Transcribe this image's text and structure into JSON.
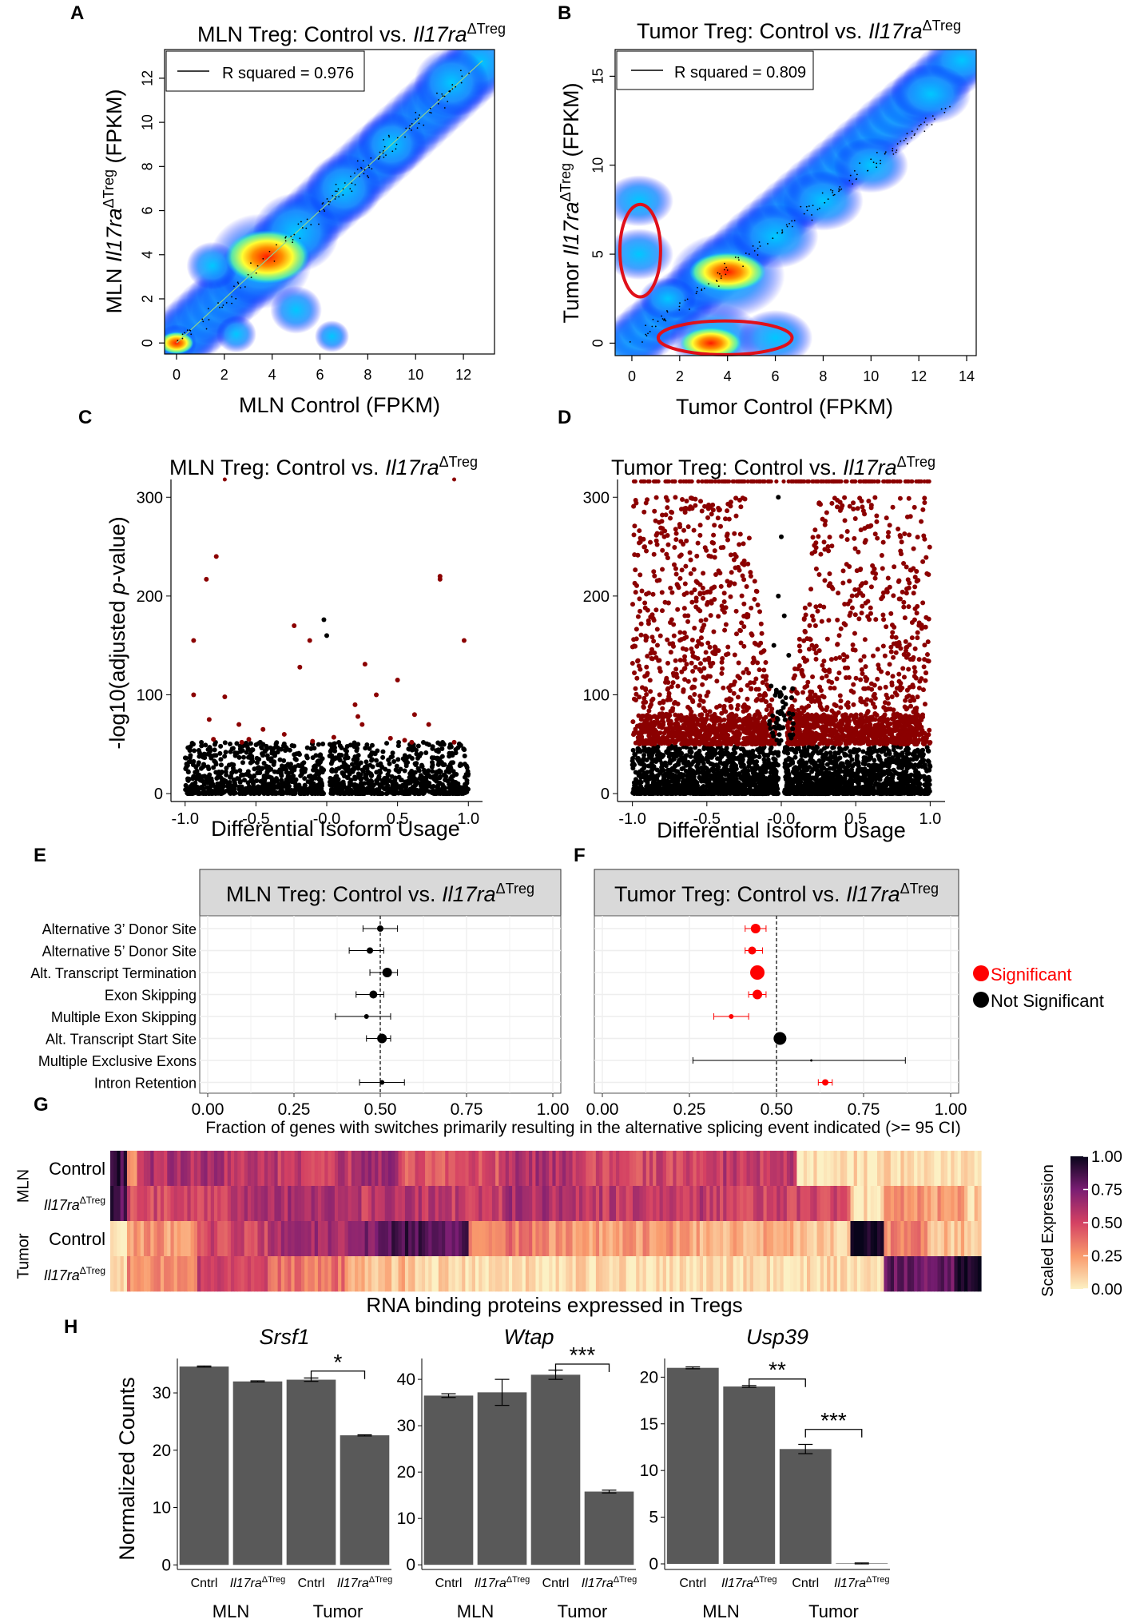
{
  "panel_letters": [
    "A",
    "B",
    "C",
    "D",
    "E",
    "F",
    "G",
    "H"
  ],
  "colors": {
    "dark_red": "#8b0000",
    "sig_red": "#ff0000",
    "bar_gray": "#595959",
    "facet_gray": "#d9d9d9"
  },
  "chart_data": [
    {
      "id": "A",
      "type": "scatter",
      "title_plain": "MLN Treg: Control vs. ",
      "title_gene": "Il17ra",
      "title_sup": "ΔTreg",
      "xlabel": "MLN Control (FPKM)",
      "ylabel_prefix": "MLN ",
      "ylabel_gene": "Il17ra",
      "ylabel_sup": "ΔTreg",
      "ylabel_suffix": " (FPKM)",
      "xlim": [
        -0.5,
        13.3
      ],
      "ylim": [
        -0.5,
        13.3
      ],
      "xticks": [
        0,
        2,
        4,
        6,
        8,
        10,
        12
      ],
      "yticks": [
        0,
        2,
        4,
        6,
        8,
        10,
        12
      ],
      "legend": "R squared = 0.976",
      "density": [
        [
          0,
          0,
          0.7
        ],
        [
          3.5,
          3.7,
          1.8
        ],
        [
          5,
          5,
          1.5
        ],
        [
          7,
          7,
          1.3
        ],
        [
          9,
          9,
          1.2
        ],
        [
          11.5,
          11.8,
          1.3
        ],
        [
          1.5,
          3.5,
          0.9
        ],
        [
          5,
          1.5,
          0.9
        ],
        [
          2.5,
          0.4,
          0.7
        ],
        [
          6.5,
          0.3,
          0.6
        ]
      ],
      "hotspots": [
        [
          0,
          0,
          0.45
        ],
        [
          3.8,
          3.9,
          1.1
        ]
      ]
    },
    {
      "id": "B",
      "type": "scatter",
      "title_plain": "Tumor Treg: Control vs. ",
      "title_gene": "Il17ra",
      "title_sup": "ΔTreg",
      "xlabel": "Tumor Control (FPKM)",
      "ylabel_prefix": "Tumor ",
      "ylabel_gene": "Il17ra",
      "ylabel_sup": "ΔTreg",
      "ylabel_suffix": " (FPKM)",
      "xlim": [
        -0.7,
        14.4
      ],
      "ylim": [
        -0.7,
        16.5
      ],
      "xticks": [
        0,
        2,
        4,
        6,
        8,
        10,
        12,
        14
      ],
      "yticks": [
        0,
        5,
        10,
        15
      ],
      "legend": "R squared = 0.809",
      "density": [
        [
          0.3,
          5,
          1.2
        ],
        [
          0.3,
          8,
          1.2
        ],
        [
          3.5,
          0.3,
          1.6
        ],
        [
          6,
          0.3,
          1.3
        ],
        [
          4,
          3.8,
          2.0
        ],
        [
          6,
          6,
          1.5
        ],
        [
          8,
          8,
          1.4
        ],
        [
          10,
          10,
          1.3
        ],
        [
          12.5,
          14,
          1.4
        ],
        [
          1.5,
          2.5,
          1.0
        ]
      ],
      "hotspots": [
        [
          3.3,
          0,
          0.8
        ],
        [
          4.0,
          4.0,
          1.0
        ]
      ],
      "ellipses": [
        {
          "cx": 0.35,
          "cy": 5.2,
          "rx": 0.85,
          "ry": 2.6
        },
        {
          "cx": 3.9,
          "cy": 0.3,
          "rx": 2.8,
          "ry": 0.95
        }
      ]
    },
    {
      "id": "C",
      "type": "scatter",
      "title_plain": "MLN Treg: Control vs. ",
      "title_gene": "Il17ra",
      "title_sup": "ΔTreg",
      "xlabel": "Differential Isoform Usage",
      "ylabel_prefix": "-log10(adjusted ",
      "ylabel_italic": "p",
      "ylabel_suffix": "-value)",
      "xlim": [
        -1.1,
        1.1
      ],
      "ylim": [
        -8,
        318
      ],
      "xticks": [
        -1.0,
        -0.5,
        0.0,
        0.5,
        1.0
      ],
      "xticklabels": [
        "-1.0",
        "-0.5",
        "-0.0",
        "0.5",
        "1.0"
      ],
      "yticks": [
        0,
        100,
        200,
        300
      ],
      "significant_points": [
        [
          -0.78,
          240
        ],
        [
          -0.85,
          217
        ],
        [
          -0.94,
          155
        ],
        [
          -0.94,
          100
        ],
        [
          -0.72,
          98
        ],
        [
          -0.83,
          75
        ],
        [
          -0.62,
          70
        ],
        [
          -0.45,
          65
        ],
        [
          -0.3,
          60
        ],
        [
          -0.23,
          170
        ],
        [
          -0.19,
          128
        ],
        [
          -0.12,
          155
        ],
        [
          0.2,
          90
        ],
        [
          0.22,
          78
        ],
        [
          0.25,
          70
        ],
        [
          0.27,
          131
        ],
        [
          0.35,
          100
        ],
        [
          0.5,
          115
        ],
        [
          0.62,
          80
        ],
        [
          0.72,
          70
        ],
        [
          0.8,
          220
        ],
        [
          0.8,
          217
        ],
        [
          0.97,
          155
        ],
        [
          -0.55,
          55
        ],
        [
          -0.6,
          52
        ],
        [
          0.55,
          54
        ],
        [
          0.6,
          52
        ],
        [
          0.9,
          52
        ],
        [
          -0.8,
          55
        ],
        [
          0.45,
          56
        ],
        [
          -0.1,
          53
        ],
        [
          0.05,
          57
        ]
      ],
      "top_points": [
        [
          -0.72,
          318
        ],
        [
          0.9,
          318
        ]
      ],
      "black_outliers": [
        [
          -0.02,
          176
        ],
        [
          0.0,
          160
        ]
      ]
    },
    {
      "id": "D",
      "type": "scatter",
      "title_plain": "Tumor Treg: Control vs. ",
      "title_gene": "Il17ra",
      "title_sup": "ΔTreg",
      "xlabel": "Differential Isoform Usage",
      "ylabel_prefix": "",
      "ylabel_italic": "",
      "ylabel_suffix": "",
      "xlim": [
        -1.1,
        1.1
      ],
      "ylim": [
        -8,
        318
      ],
      "xticks": [
        -1.0,
        -0.5,
        0.0,
        0.5,
        1.0
      ],
      "xticklabels": [
        "-1.0",
        "-0.5",
        "-0.0",
        "0.5",
        "1.0"
      ],
      "yticks": [
        0,
        100,
        200,
        300
      ],
      "black_outliers": [
        [
          -0.02,
          300
        ],
        [
          0.0,
          260
        ],
        [
          -0.02,
          200
        ],
        [
          0.02,
          180
        ],
        [
          -0.05,
          150
        ],
        [
          0.05,
          140
        ],
        [
          0.0,
          100
        ]
      ]
    },
    {
      "id": "E",
      "type": "scatter",
      "facet_plain": "MLN Treg: Control vs. ",
      "facet_gene": "Il17ra",
      "facet_sup": "ΔTreg",
      "categories": [
        "Alternative 3’ Donor Site",
        "Alternative 5’ Donor Site",
        "Alt. Transcript Termination",
        "Exon Skipping",
        "Multiple Exon Skipping",
        "Alt. Transcript Start Site",
        "Multiple Exclusive Exons",
        "Intron Retention"
      ],
      "estimates": [
        0.5,
        0.47,
        0.52,
        0.48,
        0.46,
        0.505,
        null,
        0.505
      ],
      "ci_low": [
        0.45,
        0.41,
        0.47,
        0.43,
        0.37,
        0.46,
        null,
        0.44
      ],
      "ci_high": [
        0.55,
        0.51,
        0.55,
        0.51,
        0.53,
        0.53,
        null,
        0.57
      ],
      "sizes": [
        4,
        4,
        6,
        5,
        3,
        6,
        0,
        3
      ],
      "significant": [
        false,
        false,
        false,
        false,
        false,
        false,
        false,
        false
      ],
      "xlim": [
        0,
        1
      ],
      "xticks": [
        "0.00",
        "0.25",
        "0.50",
        "0.75",
        "1.00"
      ],
      "vline": 0.5
    },
    {
      "id": "F",
      "type": "scatter",
      "facet_plain": "Tumor Treg: Control vs. ",
      "facet_gene": "Il17ra",
      "facet_sup": "ΔTreg",
      "estimates": [
        0.44,
        0.43,
        0.445,
        0.445,
        0.37,
        0.51,
        0.6,
        0.64
      ],
      "ci_low": [
        0.41,
        0.41,
        0.43,
        0.42,
        0.32,
        0.5,
        0.26,
        0.62
      ],
      "ci_high": [
        0.47,
        0.46,
        0.46,
        0.47,
        0.42,
        0.52,
        0.87,
        0.66
      ],
      "sizes": [
        6,
        5,
        9,
        6,
        3,
        8,
        1.5,
        4
      ],
      "significant": [
        true,
        true,
        true,
        true,
        true,
        false,
        false,
        true
      ],
      "xlim": [
        0,
        1
      ],
      "xticks": [
        "0.00",
        "0.25",
        "0.50",
        "0.75",
        "1.00"
      ],
      "vline": 0.5,
      "legend": [
        "Significant",
        "Not Significant"
      ]
    },
    {
      "id": "G",
      "type": "heatmap",
      "xlabel": "RNA binding proteins expressed in Tregs",
      "row_groups": [
        "MLN",
        "Tumor"
      ],
      "rows": [
        {
          "label": "Control",
          "gene": "",
          "sup": ""
        },
        {
          "label": "",
          "gene": "Il17ra",
          "sup": "ΔTreg"
        },
        {
          "label": "Control",
          "gene": "",
          "sup": ""
        },
        {
          "label": "",
          "gene": "Il17ra",
          "sup": "ΔTreg"
        }
      ],
      "segments": [
        [
          [
            0.02,
            0.88
          ],
          [
            0.03,
            0.2
          ],
          [
            0.14,
            0.6
          ],
          [
            0.28,
            0.55
          ],
          [
            0.33,
            0.65
          ],
          [
            0.45,
            0.45
          ],
          [
            0.53,
            0.6
          ],
          [
            0.7,
            0.5
          ],
          [
            0.79,
            0.55
          ],
          [
            0.85,
            0.05
          ],
          [
            1.0,
            0.05
          ]
        ],
        [
          [
            0.02,
            0.85
          ],
          [
            0.14,
            0.5
          ],
          [
            0.28,
            0.6
          ],
          [
            0.45,
            0.55
          ],
          [
            0.53,
            0.62
          ],
          [
            0.7,
            0.55
          ],
          [
            0.85,
            0.5
          ],
          [
            0.89,
            0.05
          ],
          [
            0.98,
            0.25
          ],
          [
            1.0,
            0.1
          ]
        ],
        [
          [
            0.02,
            0.05
          ],
          [
            0.1,
            0.25
          ],
          [
            0.18,
            0.5
          ],
          [
            0.28,
            0.65
          ],
          [
            0.32,
            0.75
          ],
          [
            0.41,
            0.85
          ],
          [
            0.5,
            0.35
          ],
          [
            0.65,
            0.25
          ],
          [
            0.78,
            0.2
          ],
          [
            0.81,
            0.15
          ],
          [
            0.85,
            0.1
          ],
          [
            0.89,
            0.97
          ],
          [
            0.94,
            0.3
          ],
          [
            1.0,
            0.15
          ]
        ],
        [
          [
            0.02,
            0.05
          ],
          [
            0.1,
            0.3
          ],
          [
            0.18,
            0.55
          ],
          [
            0.27,
            0.35
          ],
          [
            0.35,
            0.15
          ],
          [
            0.5,
            0.05
          ],
          [
            0.85,
            0.05
          ],
          [
            0.89,
            0.05
          ],
          [
            0.97,
            0.8
          ],
          [
            1.0,
            0.95
          ]
        ]
      ],
      "colorbar_title": "Scaled Expression",
      "colorbar_ticks": [
        "1.00",
        "0.75",
        "0.50",
        "0.25",
        "0.00"
      ]
    },
    {
      "id": "H",
      "type": "bar",
      "ylabel": "Normalized Counts",
      "subplots": [
        {
          "title": "Srsf1",
          "categories": [
            "Cntrl",
            "Il17ra",
            "Cntrl",
            "Il17ra"
          ],
          "sup": "ΔTreg",
          "values": [
            34.6,
            32,
            32.3,
            22.6
          ],
          "errors": [
            0.1,
            0.1,
            0.3,
            0.1
          ],
          "ylim": [
            -0.8,
            36
          ],
          "yticks": [
            0,
            10,
            20,
            30
          ],
          "groups": [
            "MLN",
            "Tumor"
          ],
          "sig": [
            {
              "from": 2,
              "to": 3,
              "label": "*",
              "y": 33.8
            }
          ]
        },
        {
          "title": "Wtap",
          "categories": [
            "Cntrl",
            "Il17ra",
            "Cntrl",
            "Il17ra"
          ],
          "sup": "ΔTreg",
          "values": [
            36.5,
            37.2,
            41,
            15.8
          ],
          "errors": [
            0.4,
            2.8,
            1,
            0.3
          ],
          "ylim": [
            -1,
            44.5
          ],
          "yticks": [
            0,
            10,
            20,
            30,
            40
          ],
          "groups": [
            "MLN",
            "Tumor"
          ],
          "sig": [
            {
              "from": 2,
              "to": 3,
              "label": "***",
              "y": 43.3
            }
          ]
        },
        {
          "title": "Usp39",
          "categories": [
            "Cntrl",
            "Il17ra",
            "Cntrl",
            "Il17ra"
          ],
          "sup": "ΔTreg",
          "values": [
            21,
            19,
            12.3,
            0.05
          ],
          "errors": [
            0.1,
            0.1,
            0.5,
            0.05
          ],
          "ylim": [
            -0.6,
            22
          ],
          "yticks": [
            0,
            5,
            10,
            15,
            20
          ],
          "groups": [
            "MLN",
            "Tumor"
          ],
          "sig": [
            {
              "from": 1,
              "to": 2,
              "label": "**",
              "y": 19.8
            },
            {
              "from": 2,
              "to": 3,
              "label": "***",
              "y": 14.4
            }
          ]
        }
      ]
    }
  ],
  "ef_axis_title": "Fraction of genes with switches primarily resulting in the alternative splicing event indicated (>= 95 CI)"
}
